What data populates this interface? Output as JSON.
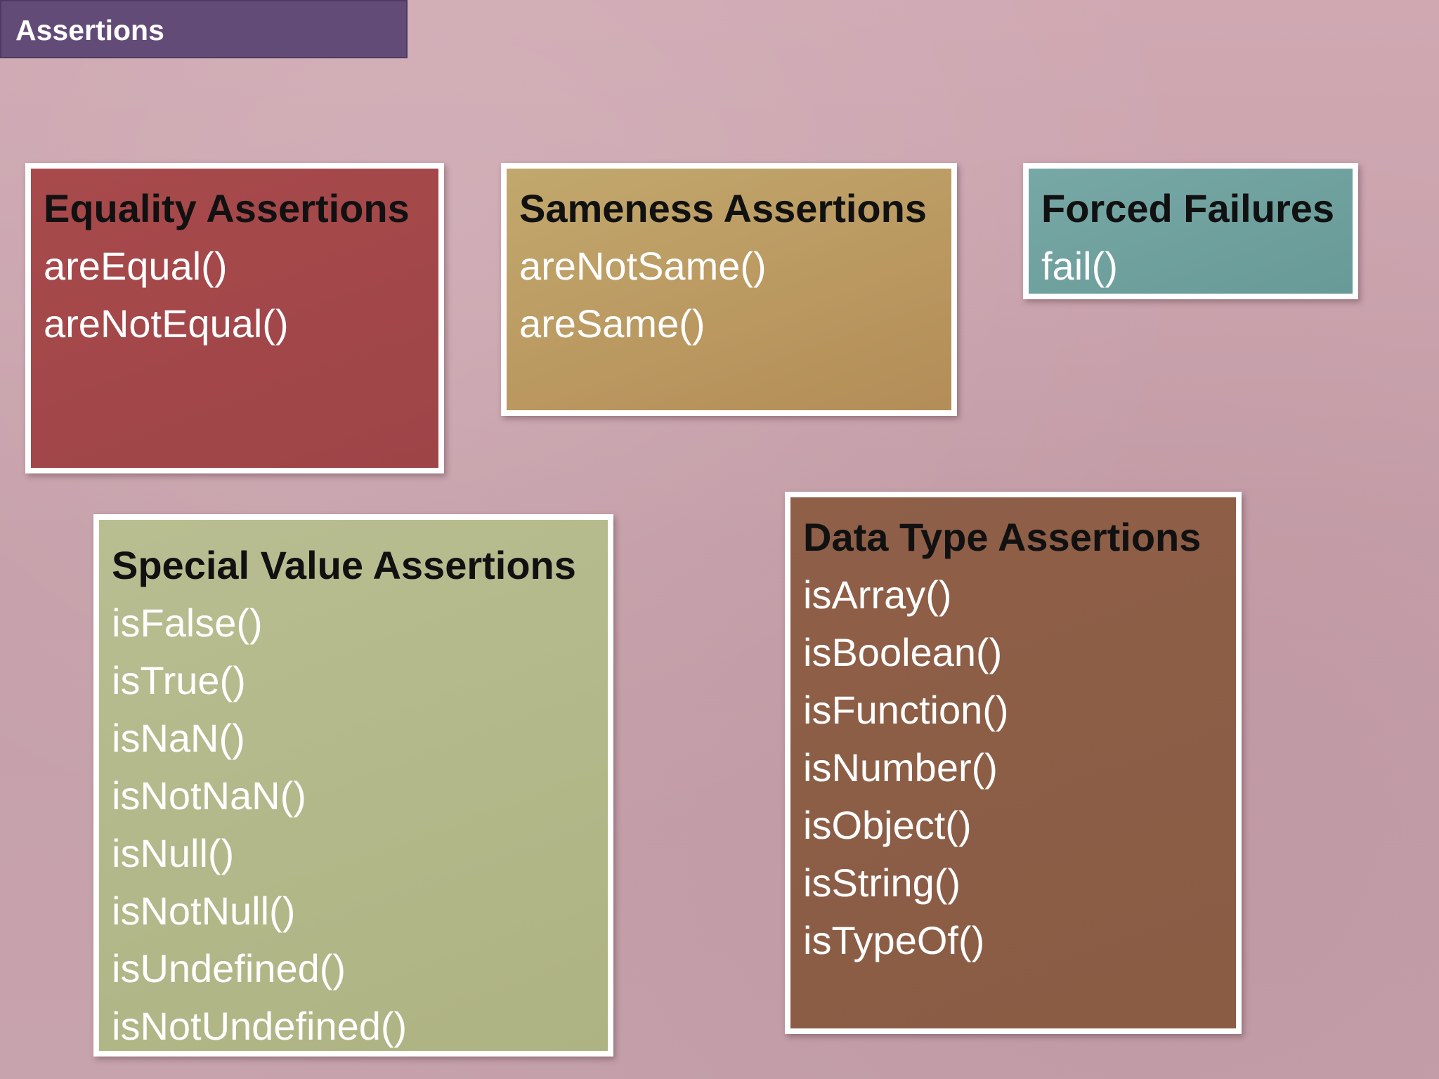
{
  "slide": {
    "title": "Assertions"
  },
  "colors": {
    "title_bar": "#634b78",
    "background": "#c8a5ae",
    "equality": "#a34749",
    "sameness": "#bb9a62",
    "forced": "#70a1a0",
    "special": "#b3b88a",
    "datatype": "#8d5e46"
  },
  "boxes": {
    "equality": {
      "heading": "Equality Assertions",
      "items": [
        "areEqual()",
        "areNotEqual()"
      ]
    },
    "sameness": {
      "heading": "Sameness Assertions",
      "items": [
        "areNotSame()",
        "areSame()"
      ]
    },
    "forced": {
      "heading": "Forced Failures",
      "items": [
        "fail()"
      ]
    },
    "special": {
      "heading": "Special Value Assertions",
      "items": [
        "isFalse()",
        "isTrue()",
        "isNaN()",
        "isNotNaN()",
        "isNull()",
        "isNotNull()",
        "isUndefined()",
        "isNotUndefined()"
      ]
    },
    "datatype": {
      "heading": "Data Type Assertions",
      "items": [
        "isArray()",
        "isBoolean()",
        "isFunction()",
        "isNumber()",
        "isObject()",
        "isString()",
        "isTypeOf()"
      ]
    }
  }
}
